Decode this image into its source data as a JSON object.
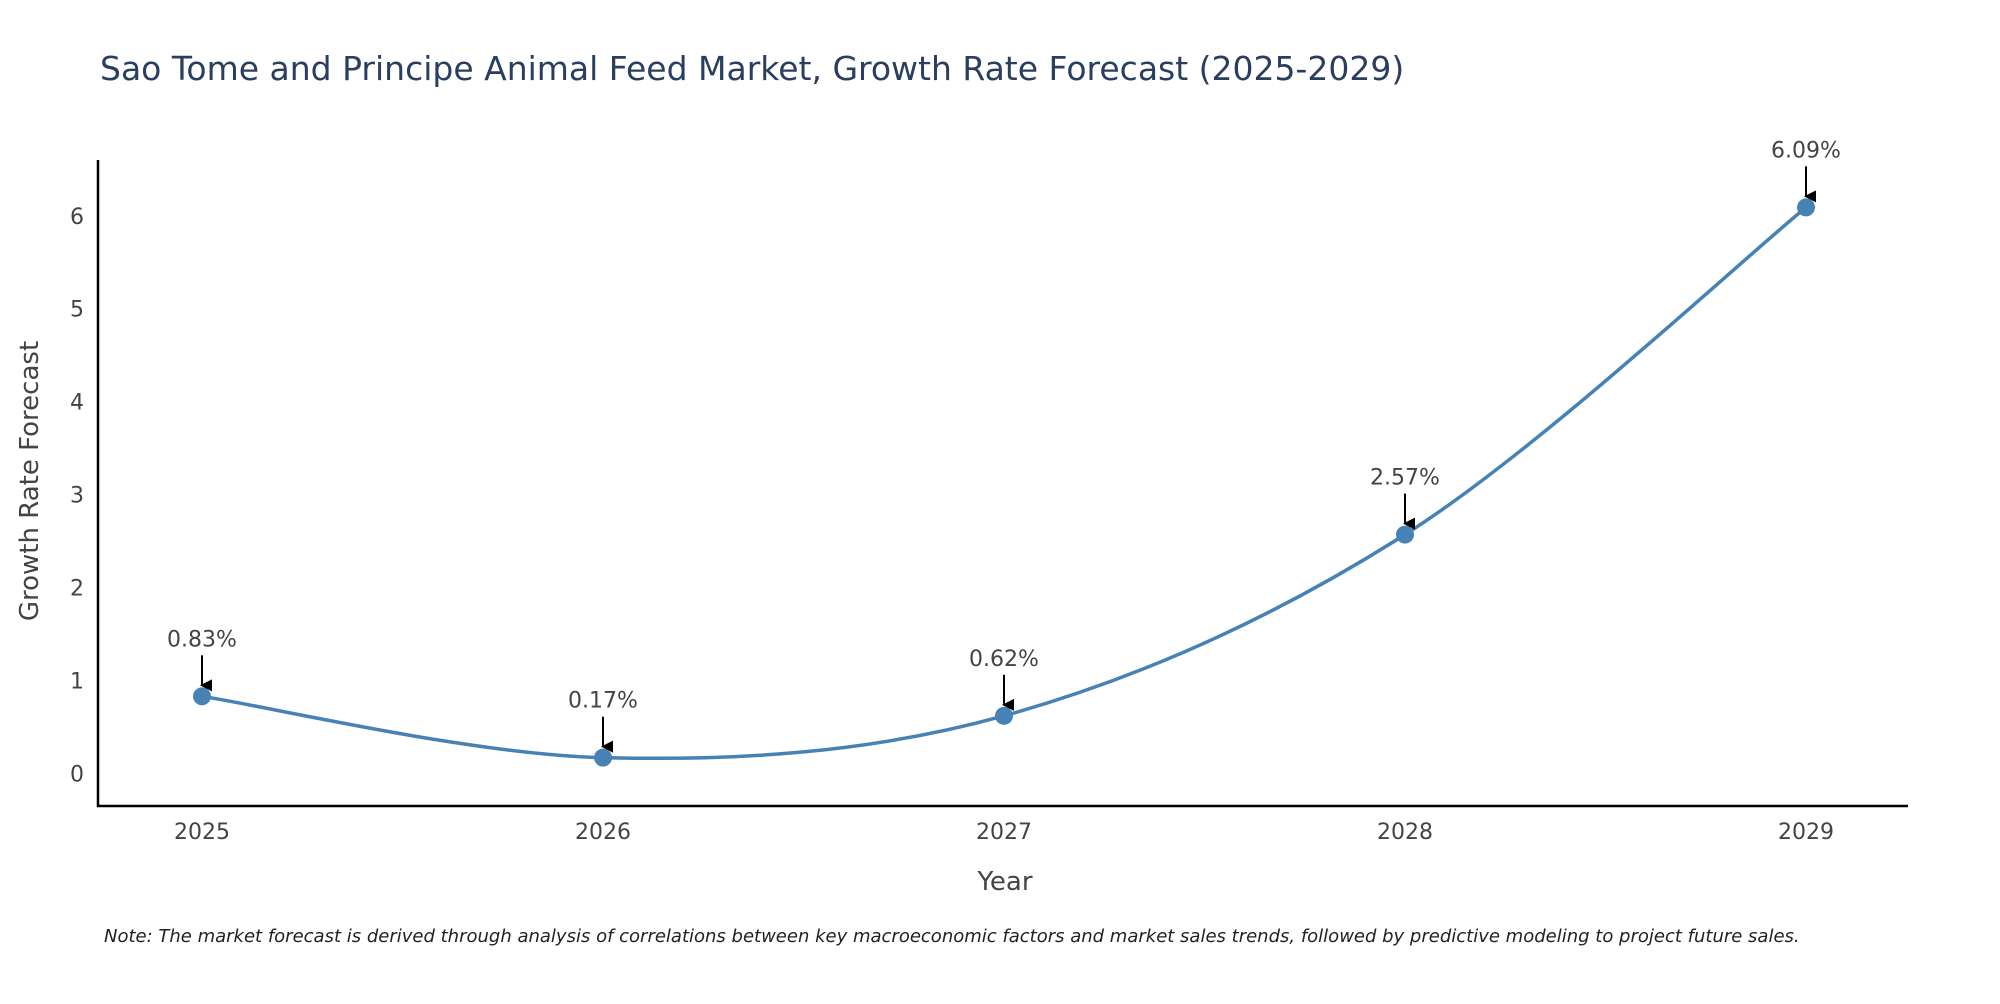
{
  "chart_data": {
    "type": "line",
    "title": "Sao Tome and Principe Animal Feed Market, Growth Rate Forecast (2025-2029)",
    "xlabel": "Year",
    "ylabel": "Growth Rate Forecast",
    "x": [
      "2025",
      "2026",
      "2027",
      "2028",
      "2029"
    ],
    "values": [
      0.83,
      0.17,
      0.62,
      2.57,
      6.09
    ],
    "data_labels": [
      "0.83%",
      "0.17%",
      "0.62%",
      "2.57%",
      "6.09%"
    ],
    "y_ticks": [
      "0",
      "1",
      "2",
      "3",
      "4",
      "5",
      "6"
    ],
    "ylim": [
      -0.35,
      6.6
    ],
    "grid": false,
    "legend": "none",
    "line_shape": "spline",
    "line_color": "#4682b4",
    "marker_color": "#4682b4",
    "axis_color": "#000000",
    "note": "Note: The market forecast is derived through analysis of correlations between key macroeconomic factors and market sales trends, followed by predictive modeling to project future sales."
  }
}
